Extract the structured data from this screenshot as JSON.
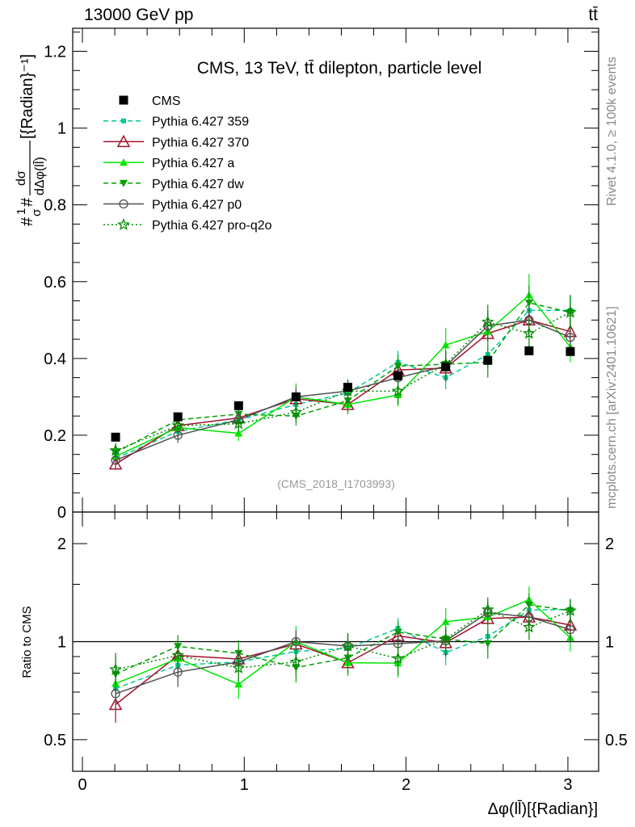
{
  "chart_data": {
    "type": "line",
    "header_left": "13000 GeV pp",
    "header_right": "tt̄",
    "title": "CMS, 13 TeV, tt̄ dilepton, particle level",
    "analysis_id": "(CMS_2018_I1703993)",
    "side_label_top": "Rivet 4.1.0, ≥ 100k events",
    "side_label_bottom": "mcplots.cern.ch [arXiv:2401.10621]",
    "ylabel": "#1/σ# dσ/dΔφ(ll̄) [{Radian}⁻¹]",
    "ylabel_prefix": "#",
    "ylabel_frac_num": "1",
    "ylabel_frac_den": "σ",
    "ylabel_mid": "#",
    "ylabel_num": "dσ",
    "ylabel_den": "dΔφ(ll̄)",
    "ylabel_unit": "[{Radian}⁻¹]",
    "ratio_ylabel": "Ratio to CMS",
    "xlabel": "Δφ(ll̄)[{Radian}]",
    "xlim": [
      -0.06,
      3.19
    ],
    "ylim": [
      0,
      1.26
    ],
    "ratio_ylim": [
      0.4,
      2.5
    ],
    "ratio_scale": "log",
    "x_ticks": [
      "0",
      "1",
      "2",
      "3"
    ],
    "y_ticks": [
      "0",
      "0.2",
      "0.4",
      "0.6",
      "0.8",
      "1",
      "1.2"
    ],
    "ratio_ticks": [
      "0.5",
      "1",
      "2"
    ],
    "legend_position": "top-left",
    "x": [
      0.205,
      0.59,
      0.965,
      1.32,
      1.64,
      1.95,
      2.245,
      2.505,
      2.76,
      3.015
    ],
    "reference": {
      "name": "CMS",
      "values": [
        0.195,
        0.248,
        0.277,
        0.3,
        0.325,
        0.355,
        0.378,
        0.395,
        0.42,
        0.418
      ],
      "color": "#000000"
    },
    "series": [
      {
        "name": "Pythia 6.427 359",
        "color": "#00c896",
        "dash": "6,4",
        "marker": "square-small",
        "values": [
          0.14,
          0.21,
          0.24,
          0.28,
          0.31,
          0.39,
          0.35,
          0.41,
          0.525,
          0.525
        ],
        "errors": [
          0.02,
          0.02,
          0.02,
          0.025,
          0.03,
          0.03,
          0.03,
          0.04,
          0.04,
          0.04
        ]
      },
      {
        "name": "Pythia 6.427 370",
        "color": "#a0122c",
        "dash": "",
        "marker": "triangle-open",
        "values": [
          0.125,
          0.225,
          0.245,
          0.295,
          0.28,
          0.37,
          0.375,
          0.465,
          0.5,
          0.47
        ],
        "errors": [
          0.015,
          0.02,
          0.02,
          0.025,
          0.025,
          0.03,
          0.035,
          0.04,
          0.04,
          0.04
        ]
      },
      {
        "name": "Pythia 6.427 a",
        "color": "#00e600",
        "dash": "",
        "marker": "triangle-filled",
        "values": [
          0.145,
          0.22,
          0.205,
          0.3,
          0.28,
          0.305,
          0.435,
          0.47,
          0.565,
          0.43
        ],
        "errors": [
          0.02,
          0.02,
          0.02,
          0.035,
          0.025,
          0.03,
          0.045,
          0.045,
          0.055,
          0.04
        ]
      },
      {
        "name": "Pythia 6.427 dw",
        "color": "#00a000",
        "dash": "6,4",
        "marker": "triangle-down",
        "values": [
          0.155,
          0.24,
          0.255,
          0.25,
          0.29,
          0.38,
          0.385,
          0.39,
          0.545,
          0.52
        ],
        "errors": [
          0.02,
          0.02,
          0.025,
          0.025,
          0.03,
          0.03,
          0.035,
          0.04,
          0.045,
          0.045
        ]
      },
      {
        "name": "Pythia 6.427 p0",
        "color": "#505050",
        "dash": "",
        "marker": "circle-open",
        "values": [
          0.135,
          0.2,
          0.24,
          0.3,
          0.315,
          0.35,
          0.38,
          0.485,
          0.5,
          0.455
        ],
        "errors": [
          0.015,
          0.02,
          0.02,
          0.025,
          0.03,
          0.03,
          0.035,
          0.04,
          0.04,
          0.04
        ]
      },
      {
        "name": "Pythia 6.427 pro-q2o",
        "color": "#008a00",
        "dash": "2,3",
        "marker": "star",
        "values": [
          0.16,
          0.225,
          0.23,
          0.26,
          0.315,
          0.315,
          0.385,
          0.495,
          0.465,
          0.52
        ],
        "errors": [
          0.02,
          0.02,
          0.02,
          0.025,
          0.03,
          0.035,
          0.035,
          0.045,
          0.04,
          0.045
        ]
      }
    ]
  }
}
